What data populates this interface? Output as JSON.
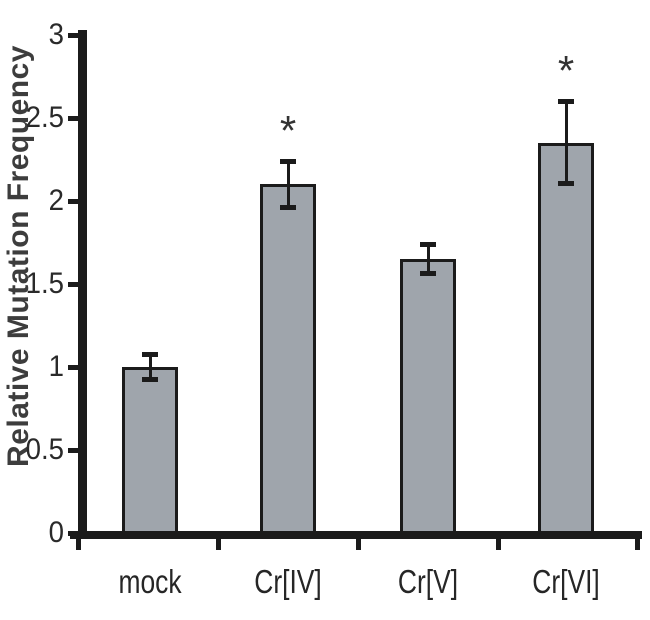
{
  "chart_data": {
    "type": "bar",
    "title": "",
    "xlabel": "",
    "ylabel": "Relative Mutation Frequency",
    "categories": [
      "mock",
      "Cr[IV]",
      "Cr[V]",
      "Cr[VI]"
    ],
    "values": [
      1.0,
      2.1,
      1.65,
      2.35
    ],
    "errors": [
      0.08,
      0.14,
      0.09,
      0.25
    ],
    "significance": [
      "",
      "*",
      "",
      "*"
    ],
    "yticks": [
      0,
      0.5,
      1,
      1.5,
      2,
      2.5,
      3
    ],
    "yticklabels": [
      "0",
      "0.5",
      "1",
      "1.5",
      "2",
      "2.5",
      "3"
    ],
    "ylim": [
      0,
      3
    ],
    "grid": false,
    "legend": "none",
    "bar_color": "#9fa5ac",
    "bar_edge_color": "#1b1b1b",
    "axis_color": "#1b1b1b",
    "tick_label_color": "#2a2a2a",
    "ylabel_color": "#3d3d3d",
    "background_color": "#ffffff"
  }
}
